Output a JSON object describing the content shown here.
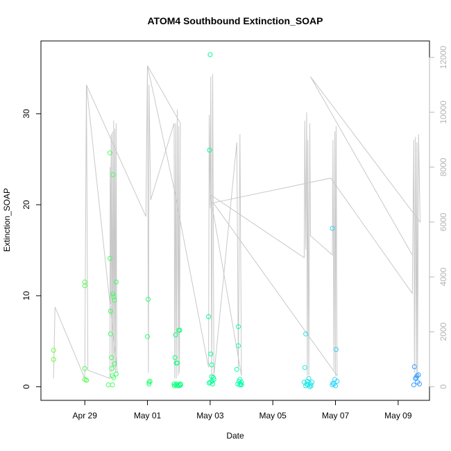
{
  "chart_data": {
    "type": "scatter",
    "title": "ATOM4 Southbound Extinction_SOAP",
    "xlabel": "Date",
    "ylabel": "Extinction_SOAP",
    "x_ticks": [
      "Apr 29",
      "May 01",
      "May 03",
      "May 05",
      "May 07",
      "May 09"
    ],
    "y_ticks": [
      "0",
      "10",
      "20",
      "30"
    ],
    "y2_ticks": [
      "0",
      "2000",
      "4000",
      "6000",
      "8000",
      "10000",
      "12000"
    ],
    "xlim_days": [
      27.6,
      40.0
    ],
    "ylim": [
      -1.5,
      38
    ],
    "y2lim": [
      -500,
      12600
    ],
    "grid": false,
    "legend": "none",
    "colors": {
      "line": "#c8c8c8",
      "right_axis": "#b4b4b4",
      "points_gradient": [
        "#66ff33",
        "#33ff66",
        "#00ff88",
        "#00ffcc",
        "#33ccff",
        "#3399ff"
      ]
    },
    "series": [
      {
        "role": "points",
        "x": [
          28.0,
          28.0,
          29.0,
          29.0,
          29.0,
          29.0,
          29.05,
          29.05,
          29.75,
          29.8,
          29.8,
          29.82,
          29.82,
          29.85,
          29.86,
          29.88,
          29.88,
          29.9,
          29.9,
          29.92,
          29.92,
          29.95,
          29.95,
          30.0,
          30.0,
          31.0,
          31.02,
          31.05,
          31.05,
          31.08,
          31.85,
          31.86,
          31.88,
          31.9,
          31.9,
          31.92,
          31.93,
          31.95,
          31.95,
          32.0,
          32.0,
          32.02,
          32.03,
          32.05,
          32.06,
          32.95,
          32.97,
          32.98,
          33.0,
          33.0,
          33.02,
          33.05,
          33.05,
          33.06,
          33.08,
          33.1,
          33.12,
          33.85,
          33.88,
          33.9,
          33.9,
          33.92,
          33.95,
          33.95,
          33.98,
          34.0,
          34.0,
          36.0,
          36.02,
          36.05,
          36.05,
          36.08,
          36.1,
          36.12,
          36.15,
          36.18,
          36.2,
          36.22,
          36.25,
          36.9,
          36.9,
          36.92,
          36.95,
          36.98,
          37.0,
          37.02,
          37.05,
          39.5,
          39.52,
          39.55,
          39.58,
          39.6,
          39.62,
          39.65,
          39.68
        ],
        "y": [
          4.0,
          3.0,
          11.5,
          11.1,
          2.0,
          0.8,
          0.7,
          0.7,
          0.2,
          25.7,
          14.1,
          8.3,
          5.8,
          3.2,
          2.0,
          1.2,
          0.2,
          23.3,
          10.2,
          9.9,
          1.0,
          2.5,
          9.5,
          11.5,
          1.4,
          5.5,
          9.6,
          0.3,
          0.5,
          0.6,
          0.3,
          0.1,
          3.2,
          5.7,
          0.2,
          2.6,
          0.3,
          0.1,
          2.6,
          6.2,
          0.2,
          0.1,
          6.2,
          0.3,
          0.2,
          7.7,
          0.4,
          26.0,
          0.5,
          36.5,
          3.6,
          2.4,
          1.1,
          0.6,
          0.3,
          1.0,
          0.8,
          1.9,
          0.3,
          6.6,
          4.5,
          0.6,
          0.2,
          0.8,
          0.3,
          0.5,
          0.2,
          0.5,
          2.1,
          5.8,
          0.1,
          0.3,
          0.6,
          0.2,
          0.9,
          0.0,
          0.3,
          0.1,
          0.5,
          0.2,
          17.4,
          0.4,
          0.3,
          0.8,
          0.1,
          4.1,
          0.6,
          0.2,
          2.2,
          0.9,
          1.0,
          1.2,
          0.5,
          1.3,
          0.3
        ]
      },
      {
        "role": "line",
        "axis": "right",
        "x": [
          28.0,
          28.05,
          29.0,
          29.05,
          29.1,
          29.8,
          29.81,
          29.82,
          29.84,
          29.86,
          29.88,
          29.9,
          29.92,
          29.94,
          29.96,
          29.98,
          30.0,
          30.02,
          30.04,
          29.05,
          30.95,
          31.0,
          31.03,
          31.05,
          31.1,
          31.85,
          31.87,
          31.9,
          31.92,
          31.95,
          31.98,
          32.0,
          32.02,
          32.05,
          31.0,
          31.85,
          32.95,
          32.97,
          33.0,
          33.02,
          33.05,
          33.08,
          33.12,
          33.85,
          33.9,
          33.95,
          34.0,
          33.0,
          36.0,
          36.02,
          36.05,
          36.08,
          36.1,
          36.12,
          36.15,
          36.18,
          36.2,
          36.9,
          36.92,
          36.95,
          36.98,
          37.0,
          37.02,
          37.05,
          33.1,
          36.85,
          39.45,
          39.5,
          39.52,
          39.55,
          39.58,
          39.6,
          39.62,
          39.65,
          39.7,
          36.2,
          39.45
        ],
        "y": [
          300,
          2900,
          300,
          11000,
          600,
          300,
          8000,
          3000,
          9200,
          500,
          9300,
          700,
          9700,
          600,
          9400,
          500,
          9600,
          700,
          500,
          11000,
          6200,
          11700,
          500,
          11000,
          6800,
          9600,
          300,
          9600,
          300,
          10100,
          400,
          9500,
          500,
          9600,
          11700,
          7200,
          700,
          9900,
          6500,
          11300,
          300,
          11400,
          400,
          8900,
          700,
          9200,
          400,
          7000,
          4700,
          9700,
          5000,
          10000,
          400,
          9000,
          400,
          9600,
          5500,
          4800,
          9000,
          600,
          9300,
          400,
          9500,
          400,
          6700,
          7600,
          3400,
          9000,
          500,
          9100,
          300,
          8900,
          400,
          9200,
          6000,
          11300,
          4800
        ]
      }
    ]
  }
}
